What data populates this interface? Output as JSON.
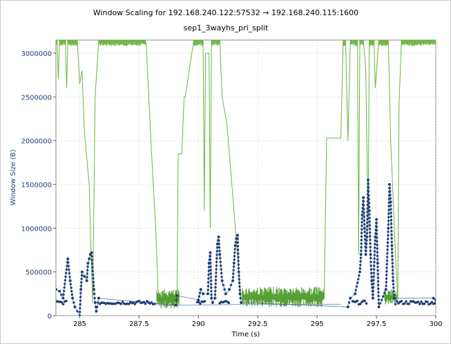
{
  "chart_data": {
    "type": "scatter",
    "title": "Window Scaling for 192.168.240.122:57532 → 192.168.240.115:1600",
    "subtitle": "sep1_3wayhs_pri_split",
    "xlabel": "Time (s)",
    "ylabel": "Window Size (B)",
    "xlim": [
      284.0,
      300.0
    ],
    "ylim": [
      0,
      3150000
    ],
    "x_ticks": [
      285,
      287.5,
      290,
      292.5,
      295,
      297.5,
      300
    ],
    "x_tick_labels": [
      "285",
      "287.5",
      "290",
      "292.5",
      "295",
      "297.5",
      "300"
    ],
    "y_ticks": [
      0,
      500000,
      1000000,
      1500000,
      2000000,
      2500000,
      3000000
    ],
    "y_tick_labels": [
      "0",
      "500000",
      "1000000",
      "1500000",
      "2000000",
      "2500000",
      "3000000"
    ],
    "grid": true,
    "colors": {
      "window": "#6db33f",
      "window_fill": "#4e9a2a",
      "bytes": "#1f3f7a",
      "bytes_line": "#7d9cc7"
    },
    "series": [
      {
        "style": "line",
        "color": "#6db33f",
        "points": [
          [
            284.0,
            3140000
          ],
          [
            284.05,
            3140000
          ],
          [
            284.1,
            2700000
          ],
          [
            284.15,
            3140000
          ],
          [
            284.4,
            3140000
          ],
          [
            284.45,
            2600000
          ],
          [
            284.5,
            3140000
          ],
          [
            284.9,
            3140000
          ],
          [
            285.0,
            2650000
          ],
          [
            285.1,
            2800000
          ],
          [
            285.2,
            2100000
          ],
          [
            285.4,
            1500000
          ],
          [
            285.5,
            500000
          ],
          [
            285.55,
            150000
          ],
          [
            285.65,
            2500000
          ],
          [
            285.8,
            3140000
          ],
          [
            287.7,
            3140000
          ],
          [
            287.8,
            3120000
          ],
          [
            288.0,
            2000000
          ],
          [
            288.2,
            1000000
          ],
          [
            288.3,
            300000
          ],
          [
            288.4,
            150000
          ],
          [
            288.9,
            150000
          ],
          [
            289.1,
            250000
          ],
          [
            289.15,
            1850000
          ],
          [
            289.2,
            1850000
          ],
          [
            289.3,
            1850000
          ],
          [
            289.4,
            2500000
          ],
          [
            289.45,
            2500000
          ],
          [
            289.8,
            3140000
          ],
          [
            290.2,
            3140000
          ],
          [
            290.25,
            1200000
          ],
          [
            290.3,
            3000000
          ],
          [
            290.45,
            3000000
          ],
          [
            290.5,
            1000000
          ],
          [
            290.55,
            3140000
          ],
          [
            290.9,
            3140000
          ],
          [
            291.0,
            2500000
          ],
          [
            291.2,
            2200000
          ],
          [
            291.5,
            1200000
          ],
          [
            291.7,
            500000
          ],
          [
            291.8,
            200000
          ],
          [
            295.3,
            200000
          ],
          [
            295.4,
            2030000
          ],
          [
            296.0,
            2030000
          ],
          [
            296.1,
            3140000
          ],
          [
            296.2,
            3140000
          ],
          [
            296.3,
            2000000
          ],
          [
            296.4,
            3140000
          ],
          [
            296.7,
            3140000
          ],
          [
            296.75,
            700000
          ],
          [
            296.8,
            3140000
          ],
          [
            296.95,
            3140000
          ],
          [
            297.05,
            2800000
          ],
          [
            297.15,
            1000000
          ],
          [
            297.2,
            3140000
          ],
          [
            297.4,
            3140000
          ],
          [
            297.45,
            2600000
          ],
          [
            297.6,
            3140000
          ],
          [
            298.0,
            3140000
          ],
          [
            298.1,
            2000000
          ],
          [
            298.3,
            700000
          ],
          [
            298.4,
            170000
          ],
          [
            298.45,
            2400000
          ],
          [
            298.55,
            3140000
          ],
          [
            300.0,
            3140000
          ]
        ]
      },
      {
        "style": "fill",
        "color": "#4e9a2a",
        "bands": [
          [
            288.25,
            289.2,
            80000,
            300000
          ],
          [
            291.85,
            295.3,
            100000,
            330000
          ],
          [
            297.85,
            298.35,
            120000,
            300000
          ]
        ]
      },
      {
        "style": "dots",
        "color": "#1f3f7a",
        "segments": [
          [
            284.05,
            284.45,
            150000
          ],
          [
            285.85,
            288.2,
            150000
          ],
          [
            289.95,
            290.3,
            150000
          ],
          [
            290.9,
            291.3,
            150000
          ],
          [
            296.5,
            297.1,
            150000
          ],
          [
            298.3,
            300.0,
            150000
          ]
        ],
        "points": [
          [
            284.0,
            300000
          ],
          [
            284.15,
            280000
          ],
          [
            284.3,
            200000
          ],
          [
            284.5,
            650000
          ],
          [
            284.6,
            400000
          ],
          [
            284.7,
            200000
          ],
          [
            284.8,
            100000
          ],
          [
            285.0,
            0
          ],
          [
            285.05,
            300000
          ],
          [
            285.1,
            500000
          ],
          [
            285.2,
            450000
          ],
          [
            285.3,
            400000
          ],
          [
            285.35,
            600000
          ],
          [
            285.4,
            650000
          ],
          [
            285.45,
            700000
          ],
          [
            285.5,
            720000
          ],
          [
            285.6,
            300000
          ],
          [
            285.65,
            150000
          ],
          [
            285.7,
            50000
          ],
          [
            285.8,
            200000
          ],
          [
            289.05,
            120000
          ],
          [
            289.1,
            230000
          ],
          [
            290.0,
            180000
          ],
          [
            290.1,
            300000
          ],
          [
            290.2,
            250000
          ],
          [
            290.4,
            250000
          ],
          [
            290.45,
            600000
          ],
          [
            290.5,
            720000
          ],
          [
            290.55,
            200000
          ],
          [
            290.6,
            150000
          ],
          [
            290.7,
            200000
          ],
          [
            290.8,
            820000
          ],
          [
            290.85,
            900000
          ],
          [
            290.9,
            700000
          ],
          [
            291.0,
            400000
          ],
          [
            291.15,
            250000
          ],
          [
            291.3,
            300000
          ],
          [
            291.45,
            400000
          ],
          [
            291.5,
            600000
          ],
          [
            291.55,
            800000
          ],
          [
            291.6,
            880000
          ],
          [
            291.65,
            920000
          ],
          [
            291.7,
            500000
          ],
          [
            291.75,
            250000
          ],
          [
            291.8,
            150000
          ],
          [
            296.3,
            100000
          ],
          [
            296.4,
            200000
          ],
          [
            296.6,
            250000
          ],
          [
            296.8,
            500000
          ],
          [
            296.85,
            700000
          ],
          [
            296.9,
            1150000
          ],
          [
            296.95,
            1350000
          ],
          [
            297.0,
            1000000
          ],
          [
            297.05,
            700000
          ],
          [
            297.1,
            900000
          ],
          [
            297.15,
            1550000
          ],
          [
            297.2,
            1200000
          ],
          [
            297.25,
            700000
          ],
          [
            297.3,
            400000
          ],
          [
            297.35,
            200000
          ],
          [
            297.45,
            900000
          ],
          [
            297.5,
            1100000
          ],
          [
            297.55,
            600000
          ],
          [
            297.6,
            100000
          ],
          [
            297.9,
            300000
          ],
          [
            298.0,
            1000000
          ],
          [
            298.05,
            1500000
          ],
          [
            298.1,
            1300000
          ],
          [
            298.15,
            800000
          ],
          [
            298.2,
            400000
          ],
          [
            298.25,
            200000
          ],
          [
            299.9,
            200000
          ],
          [
            300.0,
            180000
          ]
        ],
        "line": [
          [
            288.3,
            120000
          ],
          [
            289.5,
            120000
          ],
          [
            292.0,
            130000
          ],
          [
            296.0,
            130000
          ]
        ]
      }
    ]
  }
}
